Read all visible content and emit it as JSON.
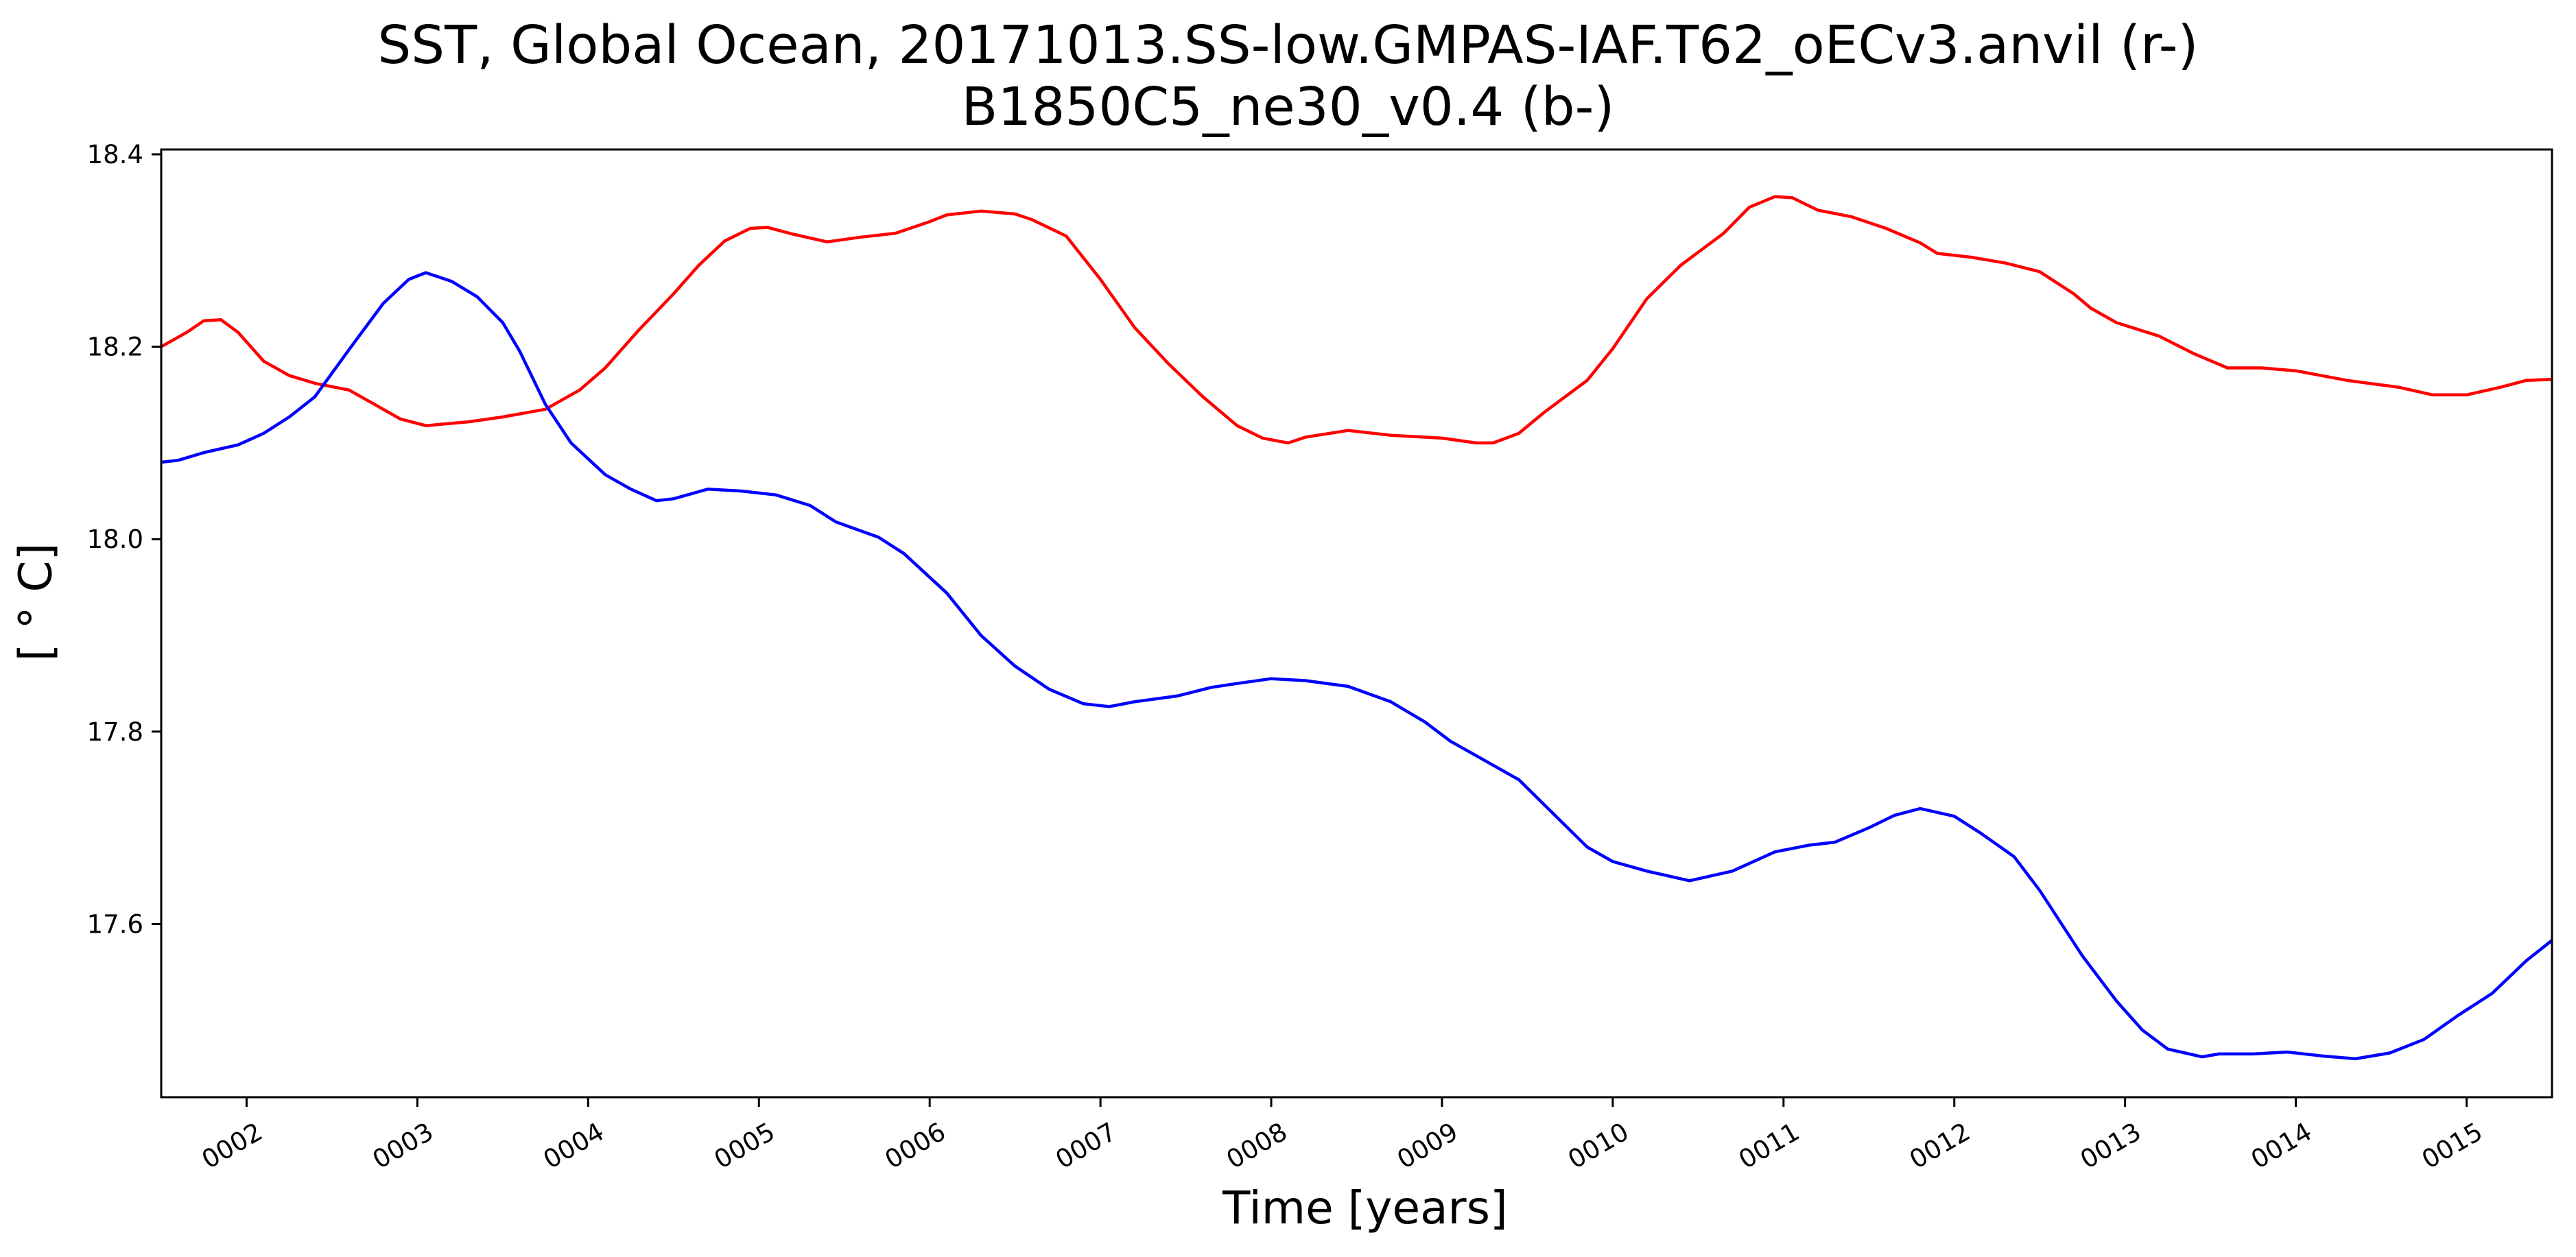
{
  "chart_data": {
    "type": "line",
    "title": "SST, Global Ocean, 20171013.SS-low.GMPAS-IAF.T62_oECv3.anvil (r-)",
    "subtitle": "B1850C5_ne30_v0.4 (b-)",
    "xlabel": "Time [years]",
    "ylabel": "[ ° C]",
    "xlim": [
      1.5,
      15.5
    ],
    "ylim": [
      17.42,
      18.405
    ],
    "x_ticks": [
      2,
      3,
      4,
      5,
      6,
      7,
      8,
      9,
      10,
      11,
      12,
      13,
      14,
      15
    ],
    "x_tick_labels": [
      "0002",
      "0003",
      "0004",
      "0005",
      "0006",
      "0007",
      "0008",
      "0009",
      "0010",
      "0011",
      "0012",
      "0013",
      "0014",
      "0015"
    ],
    "y_ticks": [
      17.6,
      17.8,
      18.0,
      18.2,
      18.4
    ],
    "y_tick_labels": [
      "17.6",
      "17.8",
      "18.0",
      "18.2",
      "18.4"
    ],
    "grid": false,
    "series": [
      {
        "color": "#ff0000",
        "points": [
          [
            1.5,
            18.2
          ],
          [
            1.65,
            18.215
          ],
          [
            1.75,
            18.227
          ],
          [
            1.85,
            18.228
          ],
          [
            1.95,
            18.215
          ],
          [
            2.1,
            18.185
          ],
          [
            2.25,
            18.17
          ],
          [
            2.4,
            18.162
          ],
          [
            2.6,
            18.155
          ],
          [
            2.75,
            18.14
          ],
          [
            2.9,
            18.125
          ],
          [
            3.05,
            18.118
          ],
          [
            3.3,
            18.122
          ],
          [
            3.5,
            18.127
          ],
          [
            3.75,
            18.135
          ],
          [
            3.95,
            18.155
          ],
          [
            4.1,
            18.178
          ],
          [
            4.3,
            18.218
          ],
          [
            4.5,
            18.255
          ],
          [
            4.65,
            18.285
          ],
          [
            4.8,
            18.31
          ],
          [
            4.95,
            18.323
          ],
          [
            5.05,
            18.324
          ],
          [
            5.2,
            18.317
          ],
          [
            5.4,
            18.309
          ],
          [
            5.6,
            18.314
          ],
          [
            5.8,
            18.318
          ],
          [
            6.0,
            18.33
          ],
          [
            6.1,
            18.337
          ],
          [
            6.3,
            18.341
          ],
          [
            6.5,
            18.338
          ],
          [
            6.6,
            18.332
          ],
          [
            6.8,
            18.315
          ],
          [
            7.0,
            18.27
          ],
          [
            7.2,
            18.22
          ],
          [
            7.4,
            18.182
          ],
          [
            7.6,
            18.148
          ],
          [
            7.8,
            18.118
          ],
          [
            7.95,
            18.105
          ],
          [
            8.1,
            18.1
          ],
          [
            8.2,
            18.106
          ],
          [
            8.45,
            18.113
          ],
          [
            8.7,
            18.108
          ],
          [
            9.0,
            18.105
          ],
          [
            9.2,
            18.1
          ],
          [
            9.3,
            18.1
          ],
          [
            9.45,
            18.11
          ],
          [
            9.6,
            18.132
          ],
          [
            9.85,
            18.165
          ],
          [
            10.0,
            18.198
          ],
          [
            10.2,
            18.25
          ],
          [
            10.4,
            18.285
          ],
          [
            10.65,
            18.318
          ],
          [
            10.8,
            18.345
          ],
          [
            10.95,
            18.356
          ],
          [
            11.05,
            18.355
          ],
          [
            11.2,
            18.342
          ],
          [
            11.4,
            18.335
          ],
          [
            11.6,
            18.323
          ],
          [
            11.8,
            18.308
          ],
          [
            11.9,
            18.297
          ],
          [
            12.1,
            18.293
          ],
          [
            12.3,
            18.287
          ],
          [
            12.5,
            18.278
          ],
          [
            12.7,
            18.255
          ],
          [
            12.8,
            18.24
          ],
          [
            12.95,
            18.225
          ],
          [
            13.2,
            18.211
          ],
          [
            13.4,
            18.193
          ],
          [
            13.6,
            18.178
          ],
          [
            13.8,
            18.178
          ],
          [
            14.0,
            18.175
          ],
          [
            14.3,
            18.165
          ],
          [
            14.6,
            18.158
          ],
          [
            14.8,
            18.15
          ],
          [
            15.0,
            18.15
          ],
          [
            15.2,
            18.158
          ],
          [
            15.35,
            18.165
          ],
          [
            15.5,
            18.166
          ]
        ]
      },
      {
        "color": "#0000ff",
        "points": [
          [
            1.5,
            18.08
          ],
          [
            1.6,
            18.082
          ],
          [
            1.75,
            18.09
          ],
          [
            1.95,
            18.098
          ],
          [
            2.1,
            18.11
          ],
          [
            2.25,
            18.127
          ],
          [
            2.4,
            18.148
          ],
          [
            2.6,
            18.197
          ],
          [
            2.8,
            18.245
          ],
          [
            2.95,
            18.27
          ],
          [
            3.05,
            18.277
          ],
          [
            3.2,
            18.268
          ],
          [
            3.35,
            18.252
          ],
          [
            3.5,
            18.225
          ],
          [
            3.6,
            18.195
          ],
          [
            3.75,
            18.14
          ],
          [
            3.9,
            18.1
          ],
          [
            4.1,
            18.067
          ],
          [
            4.25,
            18.052
          ],
          [
            4.4,
            18.04
          ],
          [
            4.5,
            18.042
          ],
          [
            4.7,
            18.052
          ],
          [
            4.9,
            18.05
          ],
          [
            5.1,
            18.046
          ],
          [
            5.3,
            18.035
          ],
          [
            5.45,
            18.018
          ],
          [
            5.7,
            18.002
          ],
          [
            5.85,
            17.985
          ],
          [
            6.1,
            17.944
          ],
          [
            6.3,
            17.9
          ],
          [
            6.5,
            17.868
          ],
          [
            6.7,
            17.844
          ],
          [
            6.9,
            17.829
          ],
          [
            7.05,
            17.826
          ],
          [
            7.2,
            17.831
          ],
          [
            7.45,
            17.837
          ],
          [
            7.65,
            17.846
          ],
          [
            7.8,
            17.85
          ],
          [
            8.0,
            17.855
          ],
          [
            8.2,
            17.853
          ],
          [
            8.45,
            17.847
          ],
          [
            8.7,
            17.831
          ],
          [
            8.9,
            17.81
          ],
          [
            9.05,
            17.79
          ],
          [
            9.25,
            17.77
          ],
          [
            9.45,
            17.75
          ],
          [
            9.65,
            17.715
          ],
          [
            9.85,
            17.68
          ],
          [
            10.0,
            17.665
          ],
          [
            10.2,
            17.655
          ],
          [
            10.45,
            17.645
          ],
          [
            10.7,
            17.655
          ],
          [
            10.95,
            17.675
          ],
          [
            11.15,
            17.682
          ],
          [
            11.3,
            17.685
          ],
          [
            11.5,
            17.7
          ],
          [
            11.65,
            17.713
          ],
          [
            11.8,
            17.72
          ],
          [
            12.0,
            17.712
          ],
          [
            12.15,
            17.695
          ],
          [
            12.35,
            17.67
          ],
          [
            12.5,
            17.635
          ],
          [
            12.75,
            17.567
          ],
          [
            12.95,
            17.52
          ],
          [
            13.1,
            17.49
          ],
          [
            13.25,
            17.47
          ],
          [
            13.45,
            17.462
          ],
          [
            13.55,
            17.465
          ],
          [
            13.75,
            17.465
          ],
          [
            13.95,
            17.467
          ],
          [
            14.15,
            17.463
          ],
          [
            14.35,
            17.46
          ],
          [
            14.55,
            17.466
          ],
          [
            14.75,
            17.48
          ],
          [
            14.95,
            17.505
          ],
          [
            15.15,
            17.528
          ],
          [
            15.35,
            17.562
          ],
          [
            15.5,
            17.583
          ]
        ]
      }
    ]
  }
}
